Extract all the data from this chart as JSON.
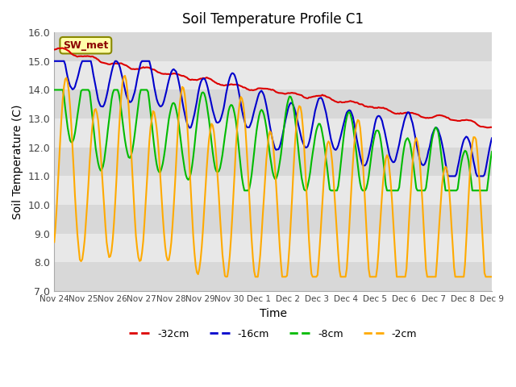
{
  "title": "Soil Temperature Profile C1",
  "xlabel": "Time",
  "ylabel": "Soil Temperature (C)",
  "ylim": [
    7.0,
    16.0
  ],
  "yticks": [
    7.0,
    8.0,
    9.0,
    10.0,
    11.0,
    12.0,
    13.0,
    14.0,
    15.0,
    16.0
  ],
  "label_box": "SW_met",
  "series_labels": [
    "-32cm",
    "-16cm",
    "-8cm",
    "-2cm"
  ],
  "series_colors": [
    "#dd0000",
    "#0000cc",
    "#00bb00",
    "#ffaa00"
  ],
  "xtick_labels": [
    "Nov 24",
    "Nov 25",
    "Nov 26",
    "Nov 27",
    "Nov 28",
    "Nov 29",
    "Nov 30",
    "Dec 1",
    "Dec 2",
    "Dec 3",
    "Dec 4",
    "Dec 5",
    "Dec 6",
    "Dec 7",
    "Dec 8",
    "Dec 9"
  ],
  "background_color": "#ffffff",
  "plot_bg_color": "#e8e8e8",
  "band_colors": [
    "#d8d8d8",
    "#e8e8e8"
  ],
  "linewidth": 1.5,
  "n_days": 15
}
